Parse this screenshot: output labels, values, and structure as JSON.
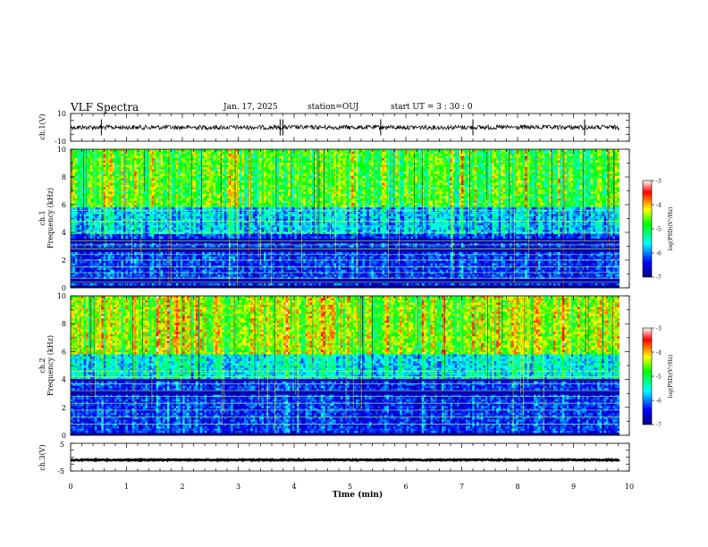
{
  "header": {
    "title": "VLF Spectra",
    "date": "Jan. 17, 2025",
    "station": "station=OUJ",
    "start": "start  UT =  3 : 30 : 0"
  },
  "chart_data": [
    {
      "type": "line",
      "name": "ch1-waveform",
      "ylabel": "ch.1(V)",
      "ylim": [
        -10,
        10
      ],
      "ytick_labels": [
        "10",
        "-10"
      ],
      "xlim": [
        0,
        10
      ],
      "baseline_value": 0,
      "spike_times_min": [
        0.55,
        3.75,
        3.8,
        5.55,
        7.2,
        9.2
      ]
    },
    {
      "type": "heatmap",
      "name": "ch1-spectrogram",
      "ylabel": "ch.1\nFrequency (kHz)",
      "ylabel_lines": [
        "ch.1",
        "Frequency (kHz)"
      ],
      "ylim": [
        0,
        10
      ],
      "yticks": [
        0,
        2,
        4,
        6,
        8,
        10
      ],
      "xlim": [
        0,
        10
      ],
      "data_end_min": 9.82,
      "colorbar": {
        "label": "log(PSD)(V²/Hz)",
        "range": [
          -7,
          -3
        ],
        "ticks": [
          "-3",
          "-4",
          "-5",
          "-6",
          "-7"
        ],
        "colors": [
          "#00007f",
          "#0000ff",
          "#00ffff",
          "#00ff00",
          "#ffff00",
          "#ff0000",
          "#ffffff"
        ]
      },
      "line_freqs_khz": [
        0.4,
        0.7,
        1.1,
        1.5,
        2.0,
        2.4,
        2.8,
        3.1,
        3.4,
        4.0,
        4.8,
        5.6
      ],
      "dark_bands_khz": [
        [
          0.3,
          0.6
        ],
        [
          2.6,
          2.9
        ],
        [
          3.3,
          3.6
        ]
      ]
    },
    {
      "type": "heatmap",
      "name": "ch2-spectrogram",
      "ylabel": "ch.2\nFrequency (kHz)",
      "ylabel_lines": [
        "ch.2",
        "Frequency (kHz)"
      ],
      "ylim": [
        0,
        10
      ],
      "yticks": [
        0,
        2,
        4,
        6,
        8,
        10
      ],
      "xlim": [
        0,
        10
      ],
      "data_end_min": 9.82,
      "colorbar": {
        "label": "log(PSD)(V²/Hz)",
        "range": [
          -7,
          -3
        ],
        "ticks": [
          "-3",
          "-4",
          "-5",
          "-6",
          "-7"
        ],
        "colors": [
          "#00007f",
          "#0000ff",
          "#00ffff",
          "#00ff00",
          "#ffff00",
          "#ff0000",
          "#ffffff"
        ]
      },
      "line_freqs_khz": [
        0.8,
        1.3,
        1.8,
        2.3,
        2.8,
        3.2,
        3.7,
        4.2,
        4.6
      ],
      "dark_bands_khz": [
        [
          2.9,
          3.3
        ],
        [
          3.8,
          4.0
        ]
      ]
    },
    {
      "type": "line",
      "name": "ch3-waveform",
      "ylabel": "ch.3(V)",
      "ylim": [
        -5,
        5
      ],
      "ytick_labels": [
        "5",
        "-5"
      ],
      "xlim": [
        0,
        10
      ],
      "baseline_value": -1,
      "xlabel": "Time (min)",
      "xticks": [
        "0",
        "1",
        "2",
        "3",
        "4",
        "5",
        "6",
        "7",
        "8",
        "9",
        "10"
      ]
    }
  ]
}
